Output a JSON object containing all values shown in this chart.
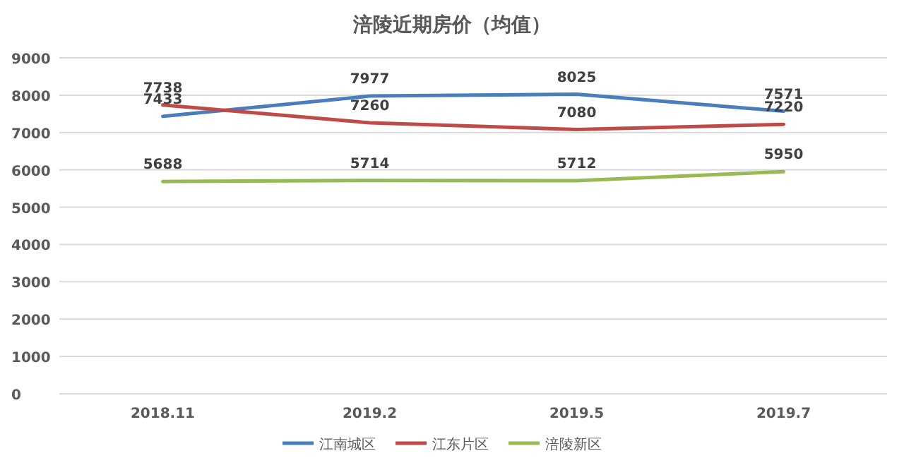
{
  "chart_data": {
    "type": "line",
    "title": "涪陵近期房价（均值）",
    "categories": [
      "2018.11",
      "2019.2",
      "2019.5",
      "2019.7"
    ],
    "series": [
      {
        "name": "江南城区",
        "color": "#4a7ebb",
        "values": [
          7433,
          7977,
          8025,
          7571
        ]
      },
      {
        "name": "江东片区",
        "color": "#be4b48",
        "values": [
          7738,
          7260,
          7080,
          7220
        ]
      },
      {
        "name": "涪陵新区",
        "color": "#98b954",
        "values": [
          5688,
          5714,
          5712,
          5950
        ]
      }
    ],
    "ylim": [
      0,
      9000
    ],
    "yticks": [
      0,
      1000,
      2000,
      3000,
      4000,
      5000,
      6000,
      7000,
      8000,
      9000
    ],
    "grid": "y",
    "legend": "bottom",
    "data_labels": true,
    "marker": "none",
    "line_style": "solid"
  }
}
